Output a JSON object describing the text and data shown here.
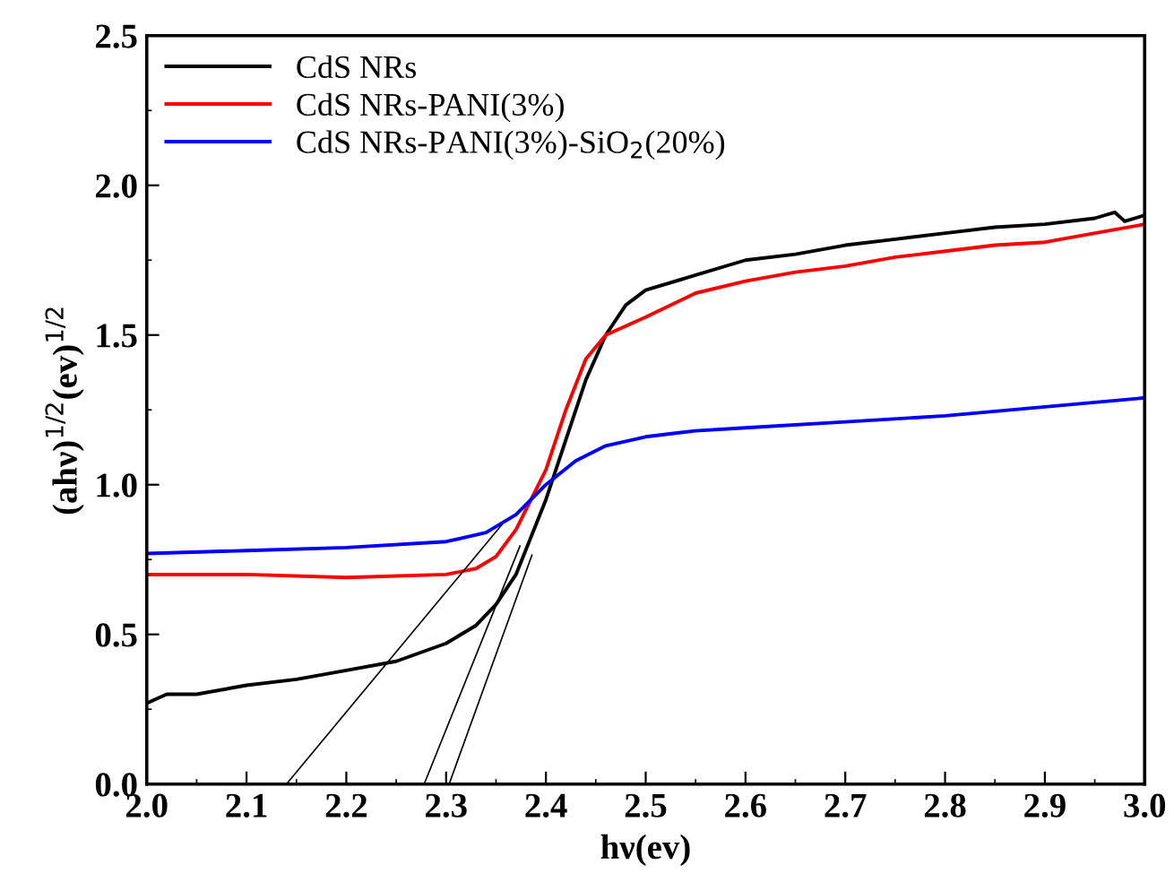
{
  "chart_data": {
    "type": "line",
    "xlabel": "hν(ev)",
    "ylabel": "(ahν)$^{1/2}$(ev)$^{1/2}$",
    "xlim": [
      2.0,
      3.0
    ],
    "ylim": [
      0.0,
      2.5
    ],
    "xticks": [
      {
        "value": 2.0,
        "label": "2.0"
      },
      2.1,
      2.2,
      2.3,
      2.4,
      2.5,
      2.6,
      2.7,
      2.8,
      2.9,
      {
        "value": 3.0,
        "label": "3.0"
      }
    ],
    "yticks": [
      {
        "value": 0.0,
        "label": "0.0"
      },
      0.5,
      {
        "value": 1.0,
        "label": "1.0"
      },
      1.5,
      {
        "value": 2.0,
        "label": "2.0"
      },
      2.5
    ],
    "legend": "top left",
    "grid": false,
    "marker": "none",
    "line_style": "solid",
    "series": [
      {
        "name": "CdS NRs",
        "color": "#000000",
        "x": [
          2.0,
          2.02,
          2.05,
          2.1,
          2.15,
          2.2,
          2.25,
          2.3,
          2.33,
          2.35,
          2.37,
          2.4,
          2.42,
          2.44,
          2.46,
          2.48,
          2.5,
          2.55,
          2.6,
          2.65,
          2.7,
          2.75,
          2.8,
          2.85,
          2.9,
          2.95,
          2.97,
          2.98,
          3.0
        ],
        "values": [
          0.27,
          0.3,
          0.3,
          0.33,
          0.35,
          0.38,
          0.41,
          0.47,
          0.53,
          0.6,
          0.7,
          0.95,
          1.15,
          1.35,
          1.5,
          1.6,
          1.65,
          1.7,
          1.75,
          1.77,
          1.8,
          1.82,
          1.84,
          1.86,
          1.87,
          1.89,
          1.91,
          1.88,
          1.9
        ]
      },
      {
        "name": "CdS NRs-PANI(3%)",
        "color": "#ff0000",
        "x": [
          2.0,
          2.1,
          2.2,
          2.3,
          2.33,
          2.35,
          2.37,
          2.4,
          2.42,
          2.44,
          2.46,
          2.5,
          2.55,
          2.6,
          2.65,
          2.7,
          2.75,
          2.8,
          2.85,
          2.9,
          2.95,
          3.0
        ],
        "values": [
          0.7,
          0.7,
          0.69,
          0.7,
          0.72,
          0.76,
          0.85,
          1.05,
          1.25,
          1.42,
          1.5,
          1.56,
          1.64,
          1.68,
          1.71,
          1.73,
          1.76,
          1.78,
          1.8,
          1.81,
          1.84,
          1.87
        ]
      },
      {
        "name": "CdS NRs-PANI(3%)-SiO$_{2}$(20%)",
        "color": "#0000ff",
        "x": [
          2.0,
          2.1,
          2.2,
          2.3,
          2.34,
          2.37,
          2.4,
          2.43,
          2.46,
          2.5,
          2.55,
          2.6,
          2.7,
          2.8,
          2.9,
          3.0
        ],
        "values": [
          0.77,
          0.78,
          0.79,
          0.81,
          0.84,
          0.9,
          1.0,
          1.08,
          1.13,
          1.16,
          1.18,
          1.19,
          1.21,
          1.23,
          1.26,
          1.29
        ]
      },
      {
        "color": "#000000",
        "x": [
          2.14,
          2.356
        ],
        "values": [
          0.0,
          0.867
        ]
      },
      {
        "color": "#000000",
        "x": [
          2.278,
          2.374
        ],
        "values": [
          0.0,
          0.795
        ]
      },
      {
        "color": "#000000",
        "x": [
          2.303,
          2.386
        ],
        "values": [
          0.0,
          0.765
        ]
      }
    ]
  }
}
